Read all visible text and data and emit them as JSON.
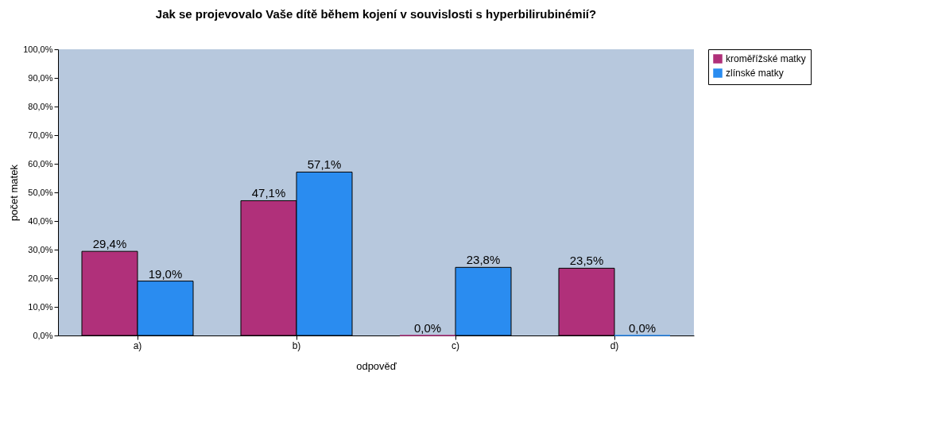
{
  "chart_data": {
    "type": "bar",
    "title": "Jak se projevovalo Vaše dítě během kojení v souvislosti s hyperbilirubinémií?",
    "xlabel": "odpověď",
    "ylabel": "počet matek",
    "categories": [
      "a)",
      "b)",
      "c)",
      "d)"
    ],
    "series": [
      {
        "name": "kroměřížské matky",
        "color": "#b0307a",
        "values": [
          29.4,
          47.1,
          0.0,
          23.5
        ],
        "value_labels": [
          "29,4%",
          "47,1%",
          "0,0%",
          "23,5%"
        ]
      },
      {
        "name": "zlínské matky",
        "color": "#2a8cf0",
        "values": [
          19.0,
          57.1,
          23.8,
          0.0
        ],
        "value_labels": [
          "19,0%",
          "57,1%",
          "23,8%",
          "0,0%"
        ]
      }
    ],
    "ylim": [
      0,
      100
    ],
    "yticks": [
      {
        "value": 0,
        "label": "0,0%"
      },
      {
        "value": 10,
        "label": "10,0%"
      },
      {
        "value": 20,
        "label": "20,0%"
      },
      {
        "value": 30,
        "label": "30,0%"
      },
      {
        "value": 40,
        "label": "40,0%"
      },
      {
        "value": 50,
        "label": "50,0%"
      },
      {
        "value": 60,
        "label": "60,0%"
      },
      {
        "value": 70,
        "label": "70,0%"
      },
      {
        "value": 80,
        "label": "80,0%"
      },
      {
        "value": 90,
        "label": "90,0%"
      },
      {
        "value": 100,
        "label": "100,0%"
      }
    ],
    "grid": false,
    "legend": "right"
  }
}
